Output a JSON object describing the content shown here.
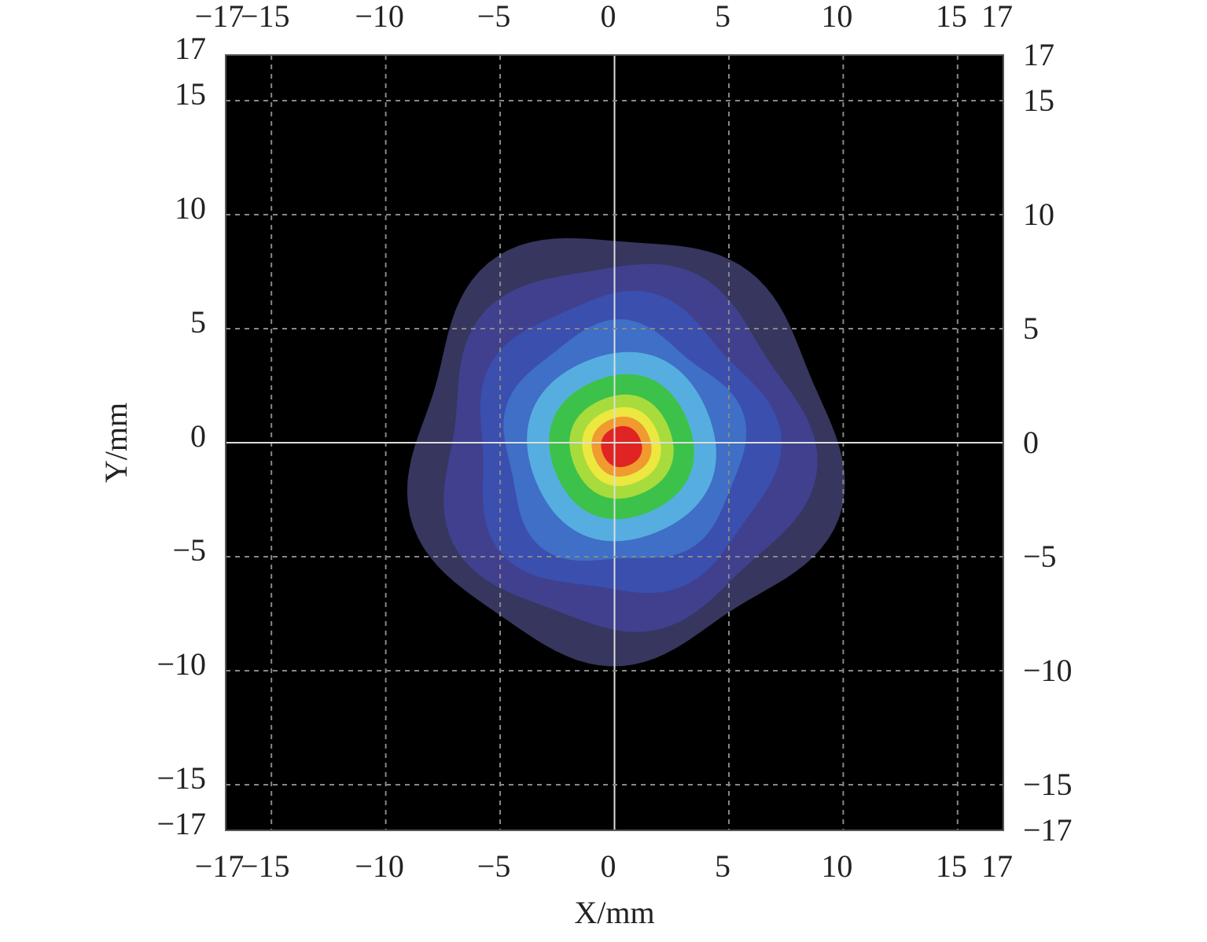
{
  "chart_data": {
    "type": "contour",
    "x_label": "X/mm",
    "y_label": "Y/mm",
    "xlim": [
      -17,
      17
    ],
    "ylim": [
      -17,
      17
    ],
    "xticks": [
      {
        "value": -17,
        "label": "−17"
      },
      {
        "value": -15,
        "label": "−15"
      },
      {
        "value": -10,
        "label": "−10"
      },
      {
        "value": -5,
        "label": "−5"
      },
      0,
      5,
      10,
      15,
      17
    ],
    "yticks": [
      {
        "value": -17,
        "label": "−17"
      },
      {
        "value": -15,
        "label": "−15"
      },
      {
        "value": -10,
        "label": "−10"
      },
      {
        "value": -5,
        "label": "−5"
      },
      0,
      5,
      10,
      15,
      17
    ],
    "background": "#000000",
    "colors": [
      "#36365f",
      "#40408f",
      "#3a4fae",
      "#3f6fc6",
      "#56aee0",
      "#3cc24a",
      "#a8dc3c",
      "#ece840",
      "#f09a30",
      "#e02424"
    ],
    "grid": true
  }
}
